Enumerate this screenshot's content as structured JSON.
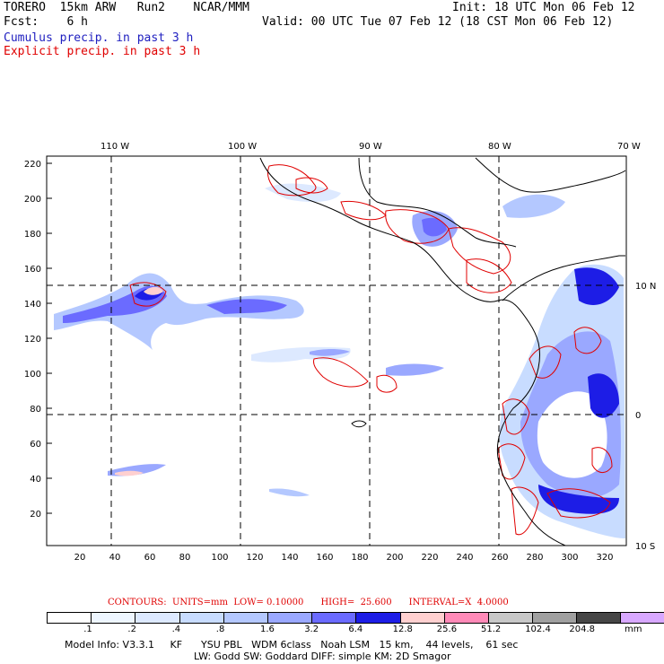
{
  "header": {
    "line1_left": "TORERO  15km ARW   Run2    NCAR/MMM",
    "line1_right": "Init: 18 UTC Mon 06 Feb 12",
    "line2_left": "Fcst:    6 h",
    "line2_right": "Valid: 00 UTC Tue 07 Feb 12 (18 CST Mon 06 Feb 12)",
    "legend_cumulus": "Cumulus precip. in past 3 h",
    "legend_explicit": "Explicit precip. in past 3 h"
  },
  "map": {
    "top_lon_labels": [
      "110 W",
      "100 W",
      "90 W",
      "80 W",
      "70 W"
    ],
    "right_lat_labels": [
      "10 N",
      "0",
      "10 S"
    ],
    "left_y_ticks": [
      "220",
      "200",
      "180",
      "160",
      "140",
      "120",
      "100",
      "80",
      "60",
      "40",
      "20"
    ],
    "bottom_x_ticks": [
      "20",
      "40",
      "60",
      "80",
      "100",
      "120",
      "140",
      "160",
      "180",
      "200",
      "220",
      "240",
      "260",
      "280",
      "300",
      "320"
    ]
  },
  "contours_text": "CONTOURS:  UNITS=mm  LOW= 0.10000      HIGH=  25.600      INTERVAL=X  4.0000",
  "colorbar": {
    "colors": [
      "#ffffff",
      "#eef6ff",
      "#dde9ff",
      "#c8dcff",
      "#b4c8ff",
      "#9aa8ff",
      "#6b6bff",
      "#1d1de6",
      "#ffd0d0",
      "#ff8ab8",
      "#c8c8c8",
      "#a0a0a0",
      "#464646",
      "#d8a8ff"
    ],
    "labels": [
      ".1",
      ".2",
      ".4",
      ".8",
      "1.6",
      "3.2",
      "6.4",
      "12.8",
      "25.6",
      "51.2",
      "102.4",
      "204.8"
    ],
    "unit": "mm"
  },
  "model_info": {
    "line1": "Model Info: V3.3.1     KF      YSU PBL   WDM 6class   Noah LSM   15 km,    44 levels,    61 sec",
    "line2": "LW: Godd SW: Goddard DIFF: simple KM: 2D Smagor"
  }
}
